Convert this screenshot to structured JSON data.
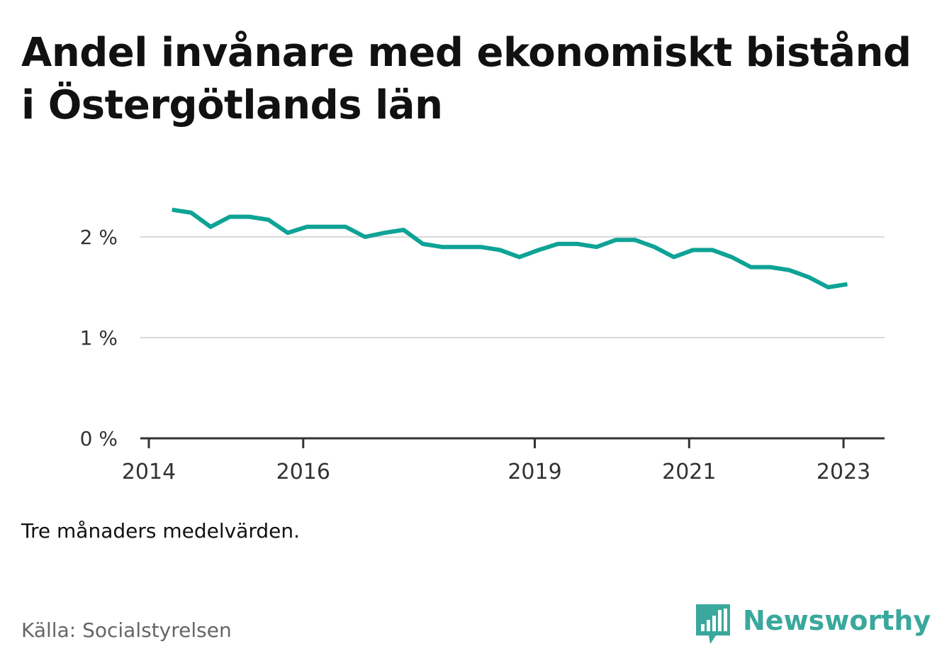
{
  "title": "Andel invånare med ekonomiskt bistånd i Östergötlands län",
  "note": "Tre månaders medelvärden.",
  "source": "Källa: Socialstyrelsen",
  "brand": {
    "name": "Newsworthy",
    "icon": "bar-chart-bubble-icon",
    "color": "#3aa89c"
  },
  "chart_data": {
    "type": "line",
    "x_tick_labels": [
      "2014",
      "2016",
      "2019",
      "2021",
      "2023"
    ],
    "y_tick_labels": [
      "0 %",
      "1 %",
      "2 %"
    ],
    "ylim": [
      0,
      2.4
    ],
    "grid": true,
    "line_color": "#0ea396",
    "series": [
      {
        "x": [
          2014.3,
          2014.55,
          2014.8,
          2015.05,
          2015.3,
          2015.55,
          2015.8,
          2016.05,
          2016.3,
          2016.55,
          2016.8,
          2017.05,
          2017.3,
          2017.55,
          2017.8,
          2018.05,
          2018.3,
          2018.55,
          2018.8,
          2019.05,
          2019.3,
          2019.55,
          2019.8,
          2020.05,
          2020.3,
          2020.55,
          2020.8,
          2021.05,
          2021.3,
          2021.55,
          2021.8,
          2022.05,
          2022.3,
          2022.55,
          2022.8,
          2023.05
        ],
        "values": [
          2.27,
          2.24,
          2.1,
          2.2,
          2.2,
          2.17,
          2.04,
          2.1,
          2.1,
          2.1,
          2.0,
          2.04,
          2.07,
          1.93,
          1.9,
          1.9,
          1.9,
          1.87,
          1.8,
          1.87,
          1.93,
          1.93,
          1.9,
          1.97,
          1.97,
          1.9,
          1.8,
          1.87,
          1.87,
          1.8,
          1.7,
          1.7,
          1.67,
          1.6,
          1.5,
          1.53
        ]
      }
    ]
  }
}
